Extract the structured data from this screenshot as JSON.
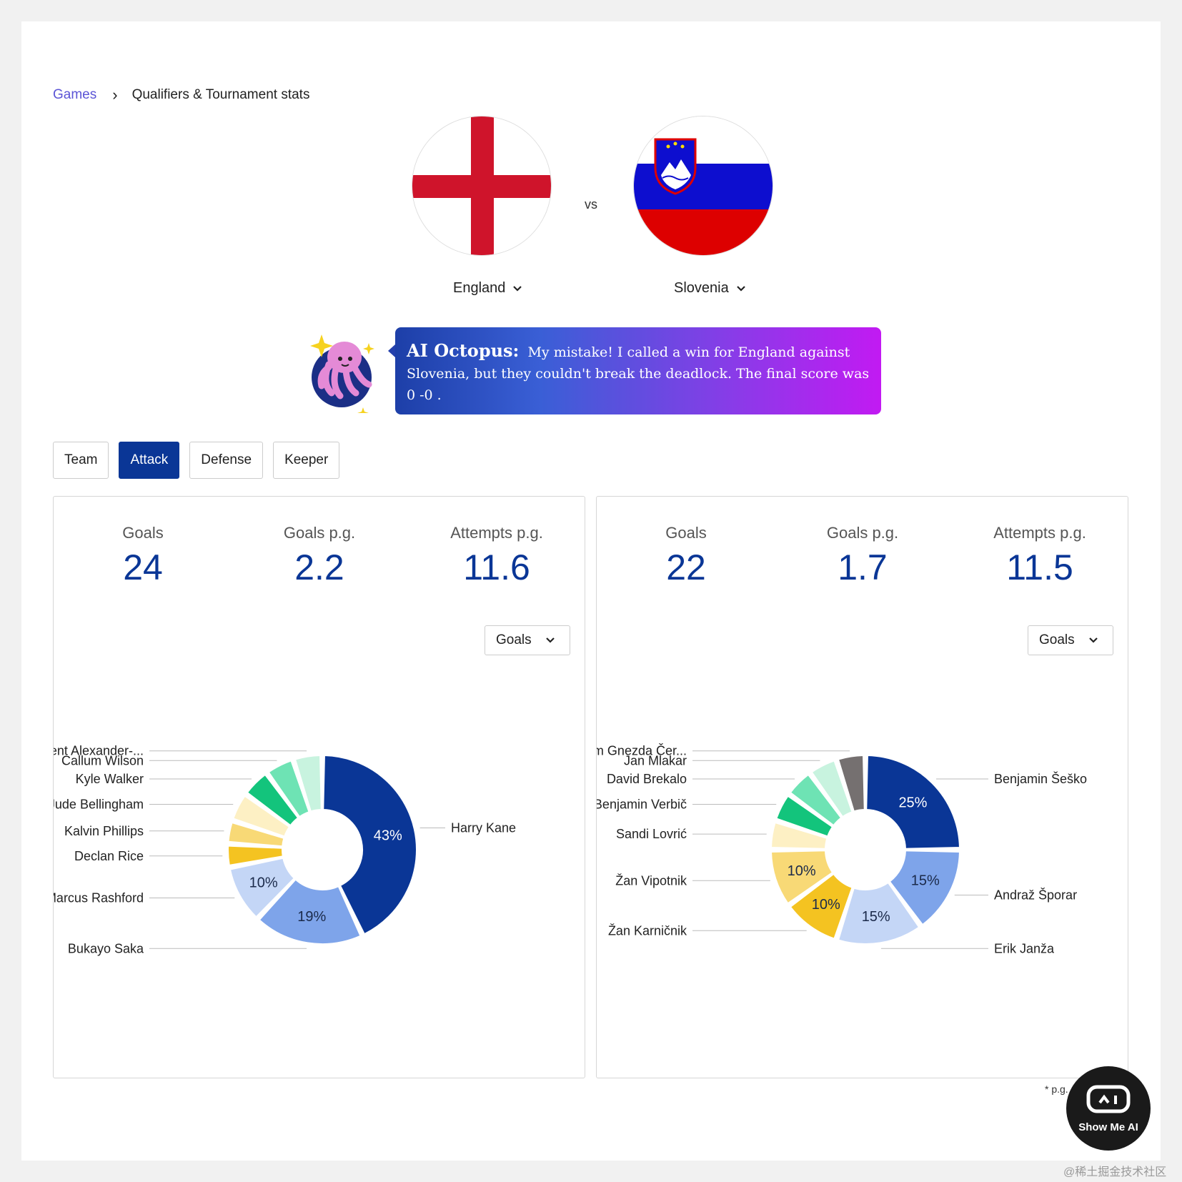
{
  "breadcrumb": {
    "games": "Games",
    "separator": "›",
    "current": "Qualifiers & Tournament stats"
  },
  "match": {
    "home": "England",
    "away": "Slovenia",
    "vs": "vs"
  },
  "ai_message": {
    "title": "AI Octopus:",
    "text": "My mistake! I called a win for England against Slovenia, but they couldn't break the deadlock. The final score was 0 -0 ."
  },
  "tabs": [
    "Team",
    "Attack",
    "Defense",
    "Keeper"
  ],
  "active_tab": "Attack",
  "panels": {
    "england": {
      "stats": [
        {
          "label": "Goals",
          "value": "24"
        },
        {
          "label": "Goals p.g.",
          "value": "2.2"
        },
        {
          "label": "Attempts p.g.",
          "value": "11.6"
        }
      ],
      "metric": "Goals"
    },
    "slovenia": {
      "stats": [
        {
          "label": "Goals",
          "value": "22"
        },
        {
          "label": "Goals p.g.",
          "value": "1.7"
        },
        {
          "label": "Attempts p.g.",
          "value": "11.5"
        }
      ],
      "metric": "Goals"
    }
  },
  "chart_data": [
    {
      "type": "pie",
      "subtype": "donut",
      "title": "",
      "series": [
        {
          "name": "Harry Kane",
          "value": 43,
          "label": "43%",
          "color": "#0a3696"
        },
        {
          "name": "Bukayo Saka",
          "value": 19,
          "label": "19%",
          "color": "#7ea4ea"
        },
        {
          "name": "Marcus Rashford",
          "value": 10,
          "label": "10%",
          "color": "#c4d6f6"
        },
        {
          "name": "Declan Rice",
          "value": 4,
          "label": "",
          "color": "#f4c321"
        },
        {
          "name": "Kalvin Phillips",
          "value": 4,
          "label": "",
          "color": "#f8d976"
        },
        {
          "name": "Jude Bellingham",
          "value": 5,
          "label": "",
          "color": "#fdf0c4"
        },
        {
          "name": "Kyle Walker",
          "value": 5,
          "label": "",
          "color": "#13c47c"
        },
        {
          "name": "Callum Wilson",
          "value": 5,
          "label": "",
          "color": "#6ee3b4"
        },
        {
          "name": "Trent Alexander-...",
          "value": 5,
          "label": "",
          "color": "#c8f3df"
        }
      ]
    },
    {
      "type": "pie",
      "subtype": "donut",
      "title": "",
      "series": [
        {
          "name": "Benjamin Šeško",
          "value": 25,
          "label": "25%",
          "color": "#0a3696"
        },
        {
          "name": "Andraž Šporar",
          "value": 15,
          "label": "15%",
          "color": "#7ea4ea"
        },
        {
          "name": "Erik Janža",
          "value": 15,
          "label": "15%",
          "color": "#c4d6f6"
        },
        {
          "name": "Žan Karničnik",
          "value": 10,
          "label": "10%",
          "color": "#f4c321"
        },
        {
          "name": "Žan Vipotnik",
          "value": 10,
          "label": "10%",
          "color": "#f8d976"
        },
        {
          "name": "Sandi Lovrić",
          "value": 5,
          "label": "",
          "color": "#fdf0c4"
        },
        {
          "name": "Benjamin Verbič",
          "value": 5,
          "label": "",
          "color": "#13c47c"
        },
        {
          "name": "David Brekalo",
          "value": 5,
          "label": "",
          "color": "#6ee3b4"
        },
        {
          "name": "Jan Mlakar",
          "value": 5,
          "label": "",
          "color": "#c8f3df"
        },
        {
          "name": "Adam Gnezda Čer...",
          "value": 5,
          "label": "",
          "color": "#757070"
        }
      ]
    }
  ],
  "footnote": "* p.g.",
  "logo": {
    "text": "Show Me AI"
  },
  "watermark": "@稀土掘金技术社区",
  "icons": {
    "chevron": "chevron-down-icon",
    "breadcrumb_sep": "chevron-right-icon",
    "mascot": "octopus-icon"
  }
}
